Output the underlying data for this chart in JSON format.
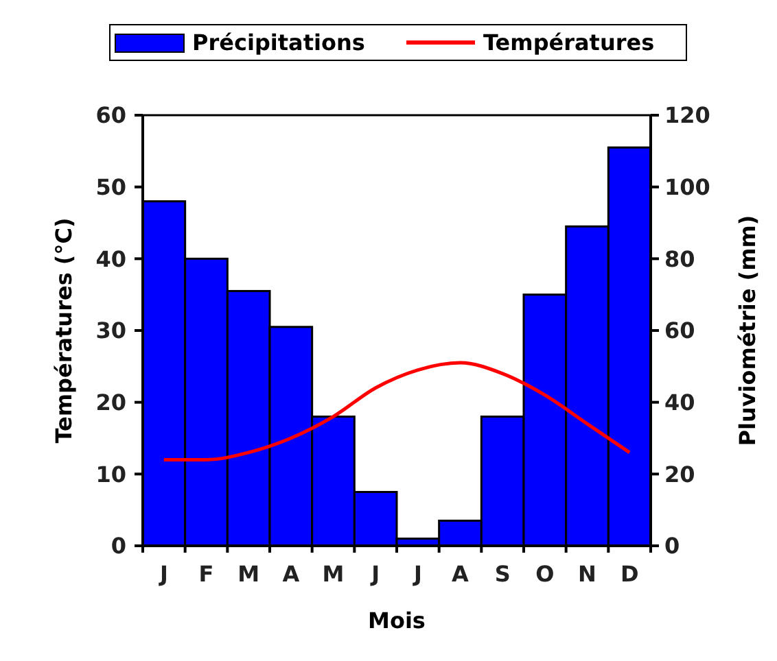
{
  "chart_data": {
    "type": "bar",
    "xlabel": "Mois",
    "ylabel": "Températures (°C)",
    "y2label": "Pluviométrie (mm)",
    "categories": [
      "J",
      "F",
      "M",
      "A",
      "M",
      "J",
      "J",
      "A",
      "S",
      "O",
      "N",
      "D"
    ],
    "series": [
      {
        "name": "Précipitations",
        "axis": "y2",
        "color": "#0000ff",
        "values": [
          96,
          80,
          71,
          61,
          36,
          15,
          2,
          7,
          36,
          70,
          89,
          111
        ]
      },
      {
        "name": "Températures",
        "type": "line",
        "color": "#ff0000",
        "values": [
          12,
          12,
          13,
          15,
          18,
          22,
          24.5,
          25.5,
          24,
          21,
          17,
          13
        ]
      }
    ],
    "ylim": [
      0,
      60
    ],
    "yticks": [
      0,
      10,
      20,
      30,
      40,
      50,
      60
    ],
    "y2lim": [
      0,
      120
    ],
    "y2ticks": [
      0,
      20,
      40,
      60,
      80,
      100,
      120
    ],
    "legend": "top",
    "grid": false,
    "marker": "none",
    "line_style": "solid"
  }
}
